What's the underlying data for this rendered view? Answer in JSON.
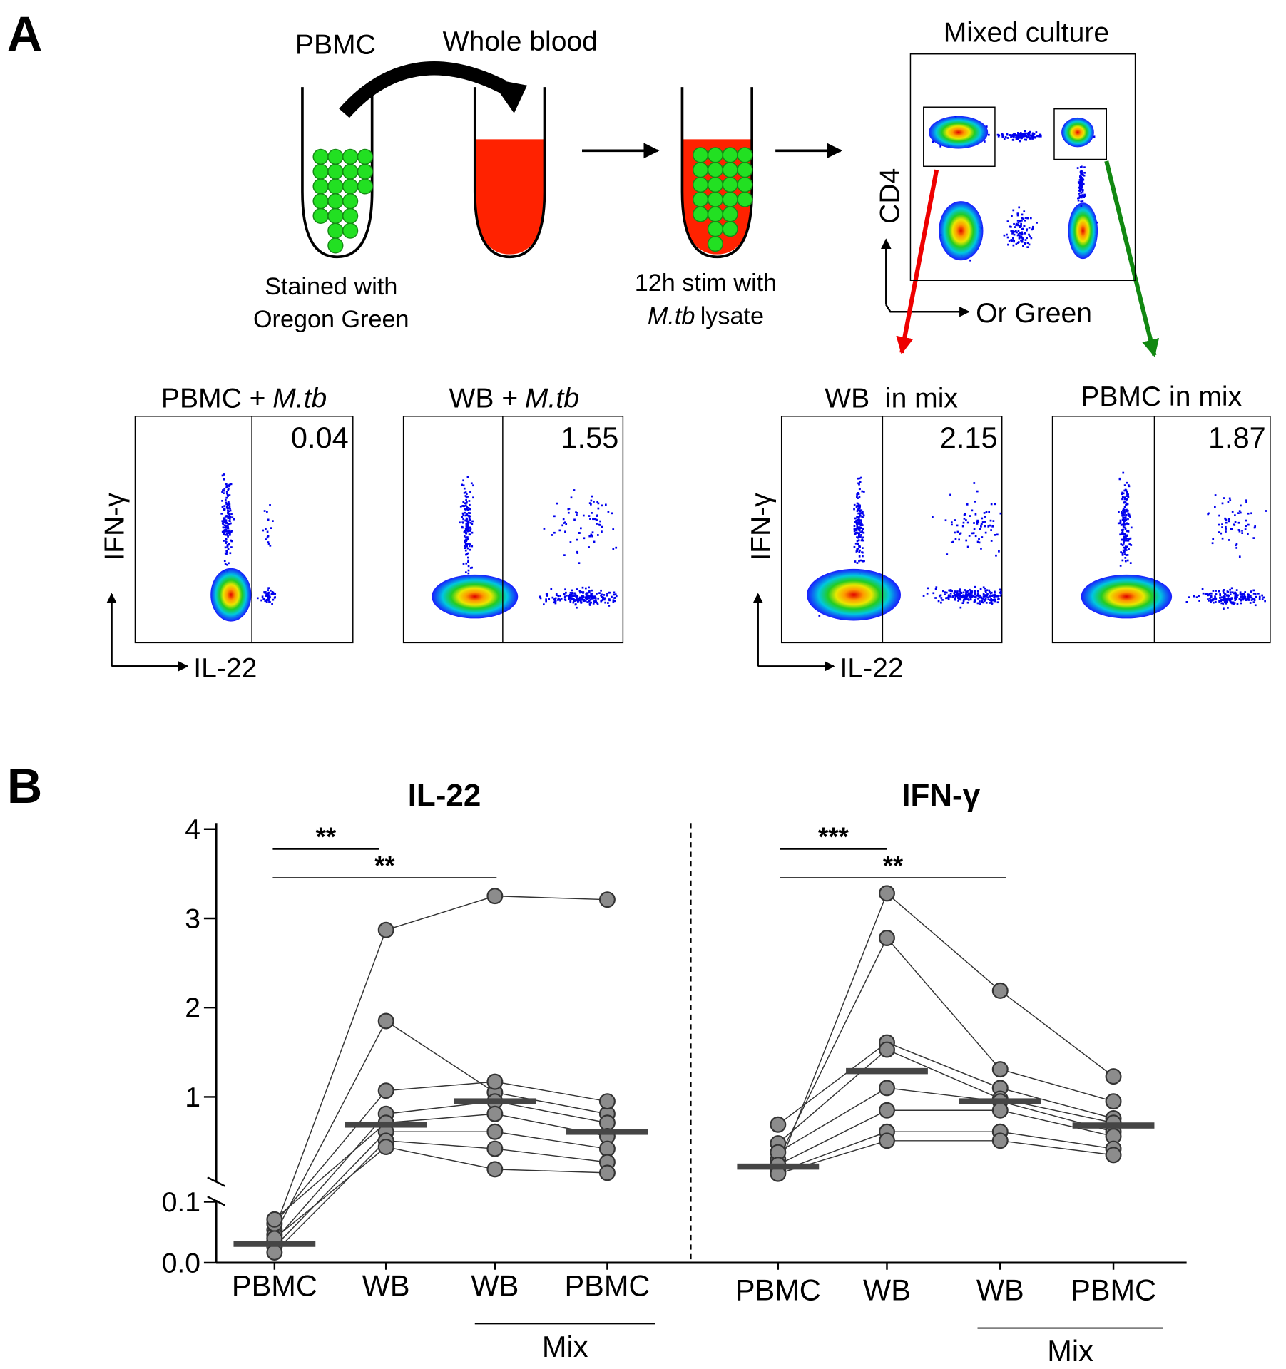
{
  "panel_a": {
    "label": "A",
    "pbmc_label": "PBMC",
    "whole_blood_label": "Whole blood",
    "stain_caption": [
      "Stained with",
      "Oregon Green"
    ],
    "stim_caption": {
      "line1": "12h stim with",
      "italic": "M.tb",
      "rest": "lysate"
    },
    "mixed_culture": {
      "title": "Mixed culture",
      "y_label": "CD4",
      "x_label": "Or Green"
    },
    "flow_plots": [
      {
        "title": "PBMC +",
        "italic": "M.tb",
        "gate_value": 0.04
      },
      {
        "title": "WB +",
        "italic": "M.tb",
        "gate_value": 1.55
      },
      {
        "title": "WB  in mix",
        "gate_value": 2.15
      },
      {
        "title": "PBMC in mix",
        "gate_value": 1.87
      }
    ],
    "y_label": "IFN-γ",
    "x_label": "IL-22"
  },
  "panel_b_label": "B",
  "chart_data": [
    {
      "type": "dot_plot",
      "title": "IL-22",
      "categories": [
        "PBMC",
        "WB",
        "WB",
        "PBMC"
      ],
      "group_label": "Mix",
      "series": [
        {
          "values": [
            0.054,
            2.87,
            3.25,
            3.21
          ]
        },
        {
          "values": [
            0.046,
            1.85,
            1.05,
            0.81
          ]
        },
        {
          "values": [
            0.064,
            1.07,
            1.17,
            0.95
          ]
        },
        {
          "values": [
            0.036,
            0.81,
            0.95,
            0.71
          ]
        },
        {
          "values": [
            0.071,
            0.71,
            0.81,
            0.56
          ]
        },
        {
          "values": [
            0.026,
            0.61,
            0.61,
            0.42
          ]
        },
        {
          "values": [
            0.017,
            0.51,
            0.42,
            0.27
          ]
        },
        {
          "values": [
            0.04,
            0.44,
            0.19,
            0.15
          ]
        }
      ],
      "medians": [
        0.031,
        0.69,
        0.95,
        0.61
      ],
      "annotations": [
        "**",
        "**"
      ],
      "point_color": "#8c8c8c",
      "median_color": "#454545",
      "ylim": [
        0.05,
        4
      ],
      "yticks": [
        1,
        2,
        3,
        4
      ],
      "ylim_low": [
        0,
        0.1
      ],
      "yticks_low": [
        {
          "value": 0,
          "label": "0.0"
        },
        0.1
      ]
    },
    {
      "type": "dot_plot",
      "title": "IFN-γ",
      "categories": [
        "PBMC",
        "WB",
        "WB",
        "PBMC"
      ],
      "group_label": "Mix",
      "series": [
        {
          "values": [
            0.2,
            3.28,
            2.19,
            1.23
          ]
        },
        {
          "values": [
            0.3,
            2.78,
            1.31,
            0.95
          ]
        },
        {
          "values": [
            0.69,
            1.61,
            1.1,
            0.76
          ]
        },
        {
          "values": [
            0.48,
            1.53,
            0.98,
            0.71
          ]
        },
        {
          "values": [
            0.38,
            1.1,
            0.95,
            0.61
          ]
        },
        {
          "values": [
            0.24,
            0.85,
            0.85,
            0.56
          ]
        },
        {
          "values": [
            0.16,
            0.61,
            0.61,
            0.42
          ]
        },
        {
          "values": [
            0.14,
            0.51,
            0.51,
            0.35
          ]
        }
      ],
      "medians": [
        0.22,
        1.29,
        0.95,
        0.68
      ],
      "annotations": [
        "***",
        "**"
      ],
      "point_color": "#8c8c8c",
      "median_color": "#454545",
      "ylim": [
        0.05,
        4
      ],
      "ylim_low": [
        0,
        0.1
      ]
    }
  ]
}
